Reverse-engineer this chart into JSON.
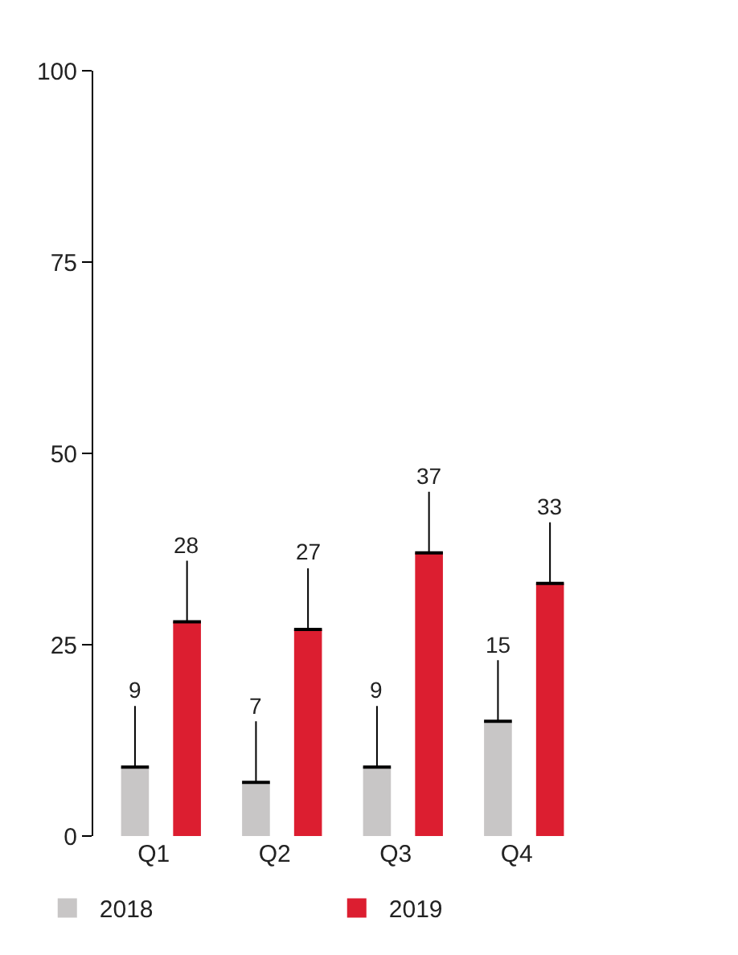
{
  "chart_data": {
    "type": "bar",
    "categories": [
      "Q1",
      "Q2",
      "Q3",
      "Q4"
    ],
    "series": [
      {
        "name": "2018",
        "color": "#c8c6c6",
        "values": [
          9,
          7,
          9,
          15
        ]
      },
      {
        "name": "2019",
        "color": "#dc1e30",
        "values": [
          28,
          27,
          37,
          33
        ]
      }
    ],
    "ylim": [
      0,
      100
    ],
    "yticks": [
      0,
      25,
      50,
      75,
      100
    ],
    "data_labels": true,
    "legend": "bottom left"
  }
}
